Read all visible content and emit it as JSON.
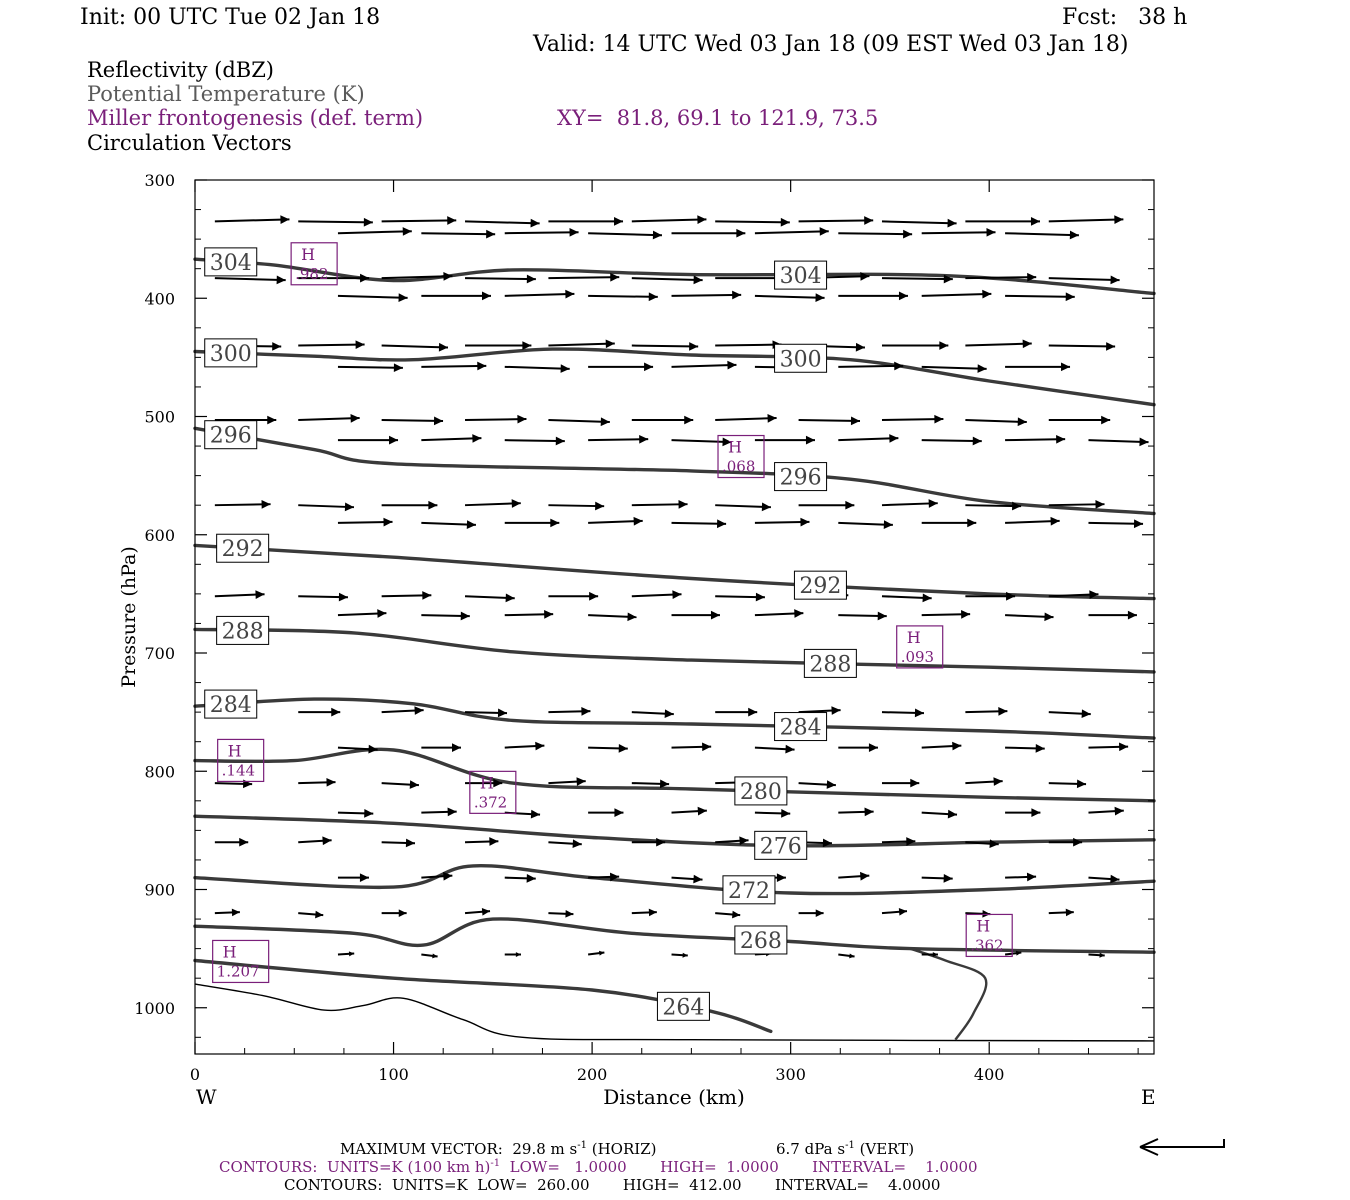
{
  "header": {
    "init": "Init: 00 UTC Tue 02 Jan 18",
    "fcst": "Fcst:   38 h",
    "valid": "Valid: 14 UTC Wed 03 Jan 18 (09 EST Wed 03 Jan 18)"
  },
  "legend": {
    "reflectivity": "Reflectivity (dBZ)",
    "theta": "Potential Temperature (K)",
    "miller": "Miller frontogenesis (def. term)",
    "xy": "XY=  81.8, 69.1 to 121.9, 73.5",
    "circulation": "Circulation Vectors"
  },
  "colors": {
    "theta_contour": "#3a3a3a",
    "fronto": "#7a1f7a",
    "black": "#000000",
    "legend_gray": "#5a5a5a"
  },
  "footer": {
    "max_vector": "MAXIMUM VECTOR:  29.8 m s",
    "max_vector_exp": "-1",
    "horiz": " (HORIZ)",
    "vert": "6.7 dPa s",
    "vert_exp": "-1",
    "vert_tail": " (VERT)",
    "contours1_a": "CONTOURS:  UNITS=K (100 km h)",
    "contours1_exp": "-1",
    "contours1_b": "  LOW=   1.0000       HIGH=  1.0000       INTERVAL=    1.0000",
    "contours2": "CONTOURS:  UNITS=K  LOW=  260.00       HIGH=  412.00       INTERVAL=    4.0000"
  },
  "chart_data": {
    "type": "line",
    "xlabel": "Distance (km)",
    "ylabel": "Pressure (hPa)",
    "xlim": [
      0,
      483
    ],
    "ylim": [
      1028,
      300
    ],
    "x_ticks": [
      0,
      100,
      200,
      300,
      400
    ],
    "y_ticks": [
      300,
      400,
      500,
      600,
      700,
      800,
      900,
      1000
    ],
    "x_end_left": "W",
    "x_end_right": "E",
    "series": [
      {
        "label": "304",
        "points": [
          [
            0,
            367
          ],
          [
            40,
            372
          ],
          [
            100,
            385
          ],
          [
            160,
            376
          ],
          [
            250,
            380
          ],
          [
            380,
            381
          ],
          [
            483,
            396
          ]
        ]
      },
      {
        "label": "300",
        "points": [
          [
            0,
            445
          ],
          [
            60,
            449
          ],
          [
            110,
            452
          ],
          [
            180,
            443
          ],
          [
            250,
            448
          ],
          [
            330,
            452
          ],
          [
            400,
            470
          ],
          [
            483,
            490
          ]
        ]
      },
      {
        "label": "296",
        "points": [
          [
            0,
            510
          ],
          [
            60,
            528
          ],
          [
            100,
            540
          ],
          [
            250,
            546
          ],
          [
            330,
            553
          ],
          [
            400,
            572
          ],
          [
            483,
            582
          ]
        ]
      },
      {
        "label": "292",
        "points": [
          [
            0,
            609
          ],
          [
            100,
            619
          ],
          [
            250,
            637
          ],
          [
            400,
            650
          ],
          [
            483,
            654
          ]
        ]
      },
      {
        "label": "288",
        "points": [
          [
            0,
            680
          ],
          [
            80,
            683
          ],
          [
            160,
            699
          ],
          [
            250,
            706
          ],
          [
            400,
            712
          ],
          [
            483,
            716
          ]
        ]
      },
      {
        "label": "284",
        "points": [
          [
            0,
            745
          ],
          [
            60,
            739
          ],
          [
            110,
            743
          ],
          [
            160,
            757
          ],
          [
            250,
            760
          ],
          [
            400,
            766
          ],
          [
            483,
            772
          ]
        ]
      },
      {
        "label": "280",
        "points": [
          [
            0,
            791
          ],
          [
            50,
            791
          ],
          [
            100,
            782
          ],
          [
            160,
            810
          ],
          [
            250,
            815
          ],
          [
            400,
            822
          ],
          [
            483,
            825
          ]
        ]
      },
      {
        "label": "276",
        "points": [
          [
            0,
            838
          ],
          [
            100,
            844
          ],
          [
            200,
            856
          ],
          [
            300,
            863
          ],
          [
            400,
            860
          ],
          [
            483,
            858
          ]
        ]
      },
      {
        "label": "272",
        "points": [
          [
            0,
            890
          ],
          [
            100,
            898
          ],
          [
            140,
            880
          ],
          [
            200,
            890
          ],
          [
            300,
            903
          ],
          [
            400,
            900
          ],
          [
            483,
            893
          ]
        ]
      },
      {
        "label": "268",
        "points": [
          [
            0,
            931
          ],
          [
            80,
            937
          ],
          [
            115,
            947
          ],
          [
            150,
            925
          ],
          [
            220,
            937
          ],
          [
            300,
            944
          ],
          [
            360,
            950
          ],
          [
            483,
            953
          ]
        ]
      },
      {
        "label": "264",
        "points": [
          [
            0,
            960
          ],
          [
            100,
            975
          ],
          [
            200,
            985
          ],
          [
            260,
            1003
          ],
          [
            290,
            1020
          ]
        ]
      }
    ],
    "fronto_maxima": [
      {
        "label": "H",
        "value": ".982",
        "x": 60,
        "p": 370
      },
      {
        "label": "H",
        "value": ".068",
        "x": 275,
        "p": 533
      },
      {
        "label": "H",
        "value": ".093",
        "x": 365,
        "p": 694
      },
      {
        "label": "H",
        "value": ".144",
        "x": 23,
        "p": 790
      },
      {
        "label": "H",
        "value": ".372",
        "x": 150,
        "p": 817
      },
      {
        "label": "H",
        "value": ".362",
        "x": 400,
        "p": 938
      },
      {
        "label": "H",
        "value": "1.207",
        "x": 23,
        "p": 960
      }
    ]
  }
}
